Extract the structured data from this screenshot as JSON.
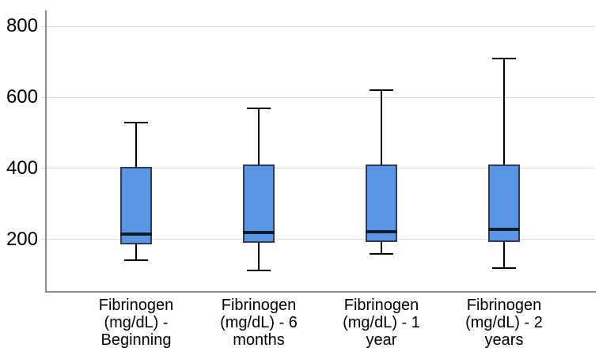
{
  "chart_data": {
    "type": "box",
    "title": "",
    "xlabel": "",
    "ylabel": "",
    "categories": [
      "Fibrinogen (mg/dL) - Beginning",
      "Fibrinogen (mg/dL) - 6 months",
      "Fibrinogen (mg/dL) - 1 year",
      "Fibrinogen (mg/dL) - 2 years"
    ],
    "series": [
      {
        "name": "Fibrinogen (mg/dL)",
        "boxes": [
          {
            "min": 142,
            "q1": 186,
            "median": 215,
            "q3": 405,
            "max": 530
          },
          {
            "min": 113,
            "q1": 190,
            "median": 219,
            "q3": 410,
            "max": 570
          },
          {
            "min": 160,
            "q1": 192,
            "median": 222,
            "q3": 410,
            "max": 620
          },
          {
            "min": 120,
            "q1": 193,
            "median": 228,
            "q3": 410,
            "max": 710
          }
        ]
      }
    ],
    "yticks": [
      200,
      400,
      600,
      800
    ],
    "ylim": [
      55,
      845
    ],
    "grid": true,
    "legend": "none",
    "colors": {
      "box_fill": "#5A96E3",
      "box_border": "#2E3C55",
      "median": "#101C30",
      "whisker": "#000000",
      "axis": "#8C8C8C",
      "gridline": "#D9D9D9",
      "text": "#000000"
    }
  }
}
